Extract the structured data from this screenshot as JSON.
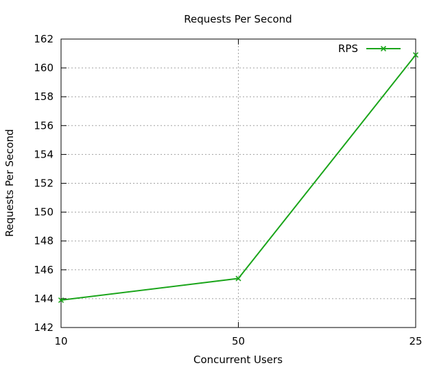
{
  "chart_data": {
    "type": "line",
    "title": "Requests Per Second",
    "xlabel": "Concurrent Users",
    "ylabel": "Requests Per Second",
    "categories": [
      "10",
      "50",
      "25"
    ],
    "ylim": [
      142,
      162
    ],
    "yticks": [
      "142",
      "144",
      "146",
      "148",
      "150",
      "152",
      "154",
      "156",
      "158",
      "160",
      "162"
    ],
    "grid": true,
    "legend_position": "top-right",
    "series": [
      {
        "name": "RPS",
        "values": [
          143.9,
          145.4,
          160.9
        ],
        "color": "#1aa51a",
        "marker": "x-cross"
      }
    ]
  }
}
